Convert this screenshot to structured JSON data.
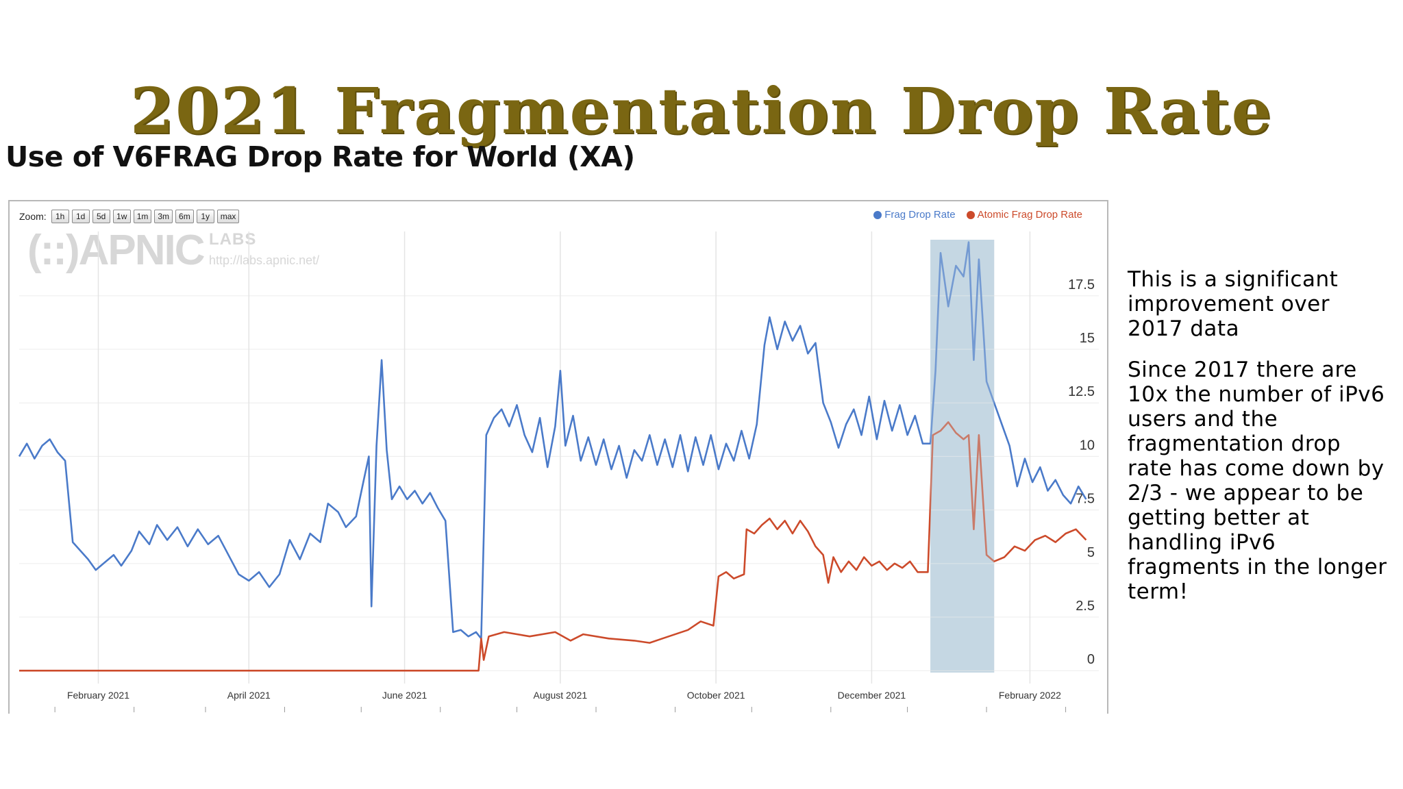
{
  "slide": {
    "title": "2021 Fragmentation Drop Rate",
    "chart_heading": "Use of V6FRAG Drop Rate for World (XA)"
  },
  "toolbar": {
    "zoom_label": "Zoom:",
    "zoom_buttons": [
      "1h",
      "1d",
      "5d",
      "1w",
      "1m",
      "3m",
      "6m",
      "1y",
      "max"
    ]
  },
  "watermark": {
    "logo": "(::)APNIC",
    "labs": "LABS",
    "url": "http://labs.apnic.net/"
  },
  "colors": {
    "frag": "#4a7ac9",
    "atomic": "#cc4a2a",
    "highlight": "#c3d6e2",
    "title": "#7a6612"
  },
  "notes": {
    "paragraph1": "This is a significant improvement over 2017 data",
    "paragraph2": "Since 2017 there are 10x the number of iPv6 users and the fragmentation drop rate has come down by 2/3 - we appear to be getting better at handling iPv6 fragments in the longer term!"
  },
  "chart_data": {
    "type": "line",
    "title": "",
    "xlabel": "",
    "ylabel": "",
    "x_ticks": [
      "February 2021",
      "April 2021",
      "June 2021",
      "August 2021",
      "October 2021",
      "December 2021",
      "February 2022"
    ],
    "x_range": [
      "2021-01-01",
      "2022-02-28"
    ],
    "y_ticks": [
      0,
      2.5,
      5,
      7.5,
      10,
      12.5,
      15,
      17.5
    ],
    "ylim": [
      -0.6,
      20.5
    ],
    "grid": true,
    "legend": "top-right",
    "highlight_range": [
      "2021-12-24",
      "2022-01-18"
    ],
    "series": [
      {
        "name": "Frag Drop Rate",
        "color": "#4a7ac9",
        "points": [
          [
            "2021-01-01",
            10.0
          ],
          [
            "2021-01-04",
            10.6
          ],
          [
            "2021-01-07",
            9.9
          ],
          [
            "2021-01-10",
            10.5
          ],
          [
            "2021-01-13",
            10.8
          ],
          [
            "2021-01-16",
            10.2
          ],
          [
            "2021-01-19",
            9.8
          ],
          [
            "2021-01-22",
            6.0
          ],
          [
            "2021-01-25",
            5.6
          ],
          [
            "2021-01-28",
            5.2
          ],
          [
            "2021-01-31",
            4.7
          ],
          [
            "2021-02-03",
            5.0
          ],
          [
            "2021-02-07",
            5.4
          ],
          [
            "2021-02-10",
            4.9
          ],
          [
            "2021-02-14",
            5.6
          ],
          [
            "2021-02-17",
            6.5
          ],
          [
            "2021-02-21",
            5.9
          ],
          [
            "2021-02-24",
            6.8
          ],
          [
            "2021-02-28",
            6.1
          ],
          [
            "2021-03-04",
            6.7
          ],
          [
            "2021-03-08",
            5.8
          ],
          [
            "2021-03-12",
            6.6
          ],
          [
            "2021-03-16",
            5.9
          ],
          [
            "2021-03-20",
            6.3
          ],
          [
            "2021-03-24",
            5.4
          ],
          [
            "2021-03-28",
            4.5
          ],
          [
            "2021-04-01",
            4.2
          ],
          [
            "2021-04-05",
            4.6
          ],
          [
            "2021-04-09",
            3.9
          ],
          [
            "2021-04-13",
            4.5
          ],
          [
            "2021-04-17",
            6.1
          ],
          [
            "2021-04-21",
            5.2
          ],
          [
            "2021-04-25",
            6.4
          ],
          [
            "2021-04-29",
            6.0
          ],
          [
            "2021-05-02",
            7.8
          ],
          [
            "2021-05-06",
            7.4
          ],
          [
            "2021-05-09",
            6.7
          ],
          [
            "2021-05-13",
            7.2
          ],
          [
            "2021-05-16",
            8.9
          ],
          [
            "2021-05-18",
            10.0
          ],
          [
            "2021-05-19",
            3.0
          ],
          [
            "2021-05-21",
            10.5
          ],
          [
            "2021-05-23",
            14.5
          ],
          [
            "2021-05-25",
            10.3
          ],
          [
            "2021-05-27",
            8.0
          ],
          [
            "2021-05-30",
            8.6
          ],
          [
            "2021-06-02",
            8.0
          ],
          [
            "2021-06-05",
            8.4
          ],
          [
            "2021-06-08",
            7.8
          ],
          [
            "2021-06-11",
            8.3
          ],
          [
            "2021-06-14",
            7.6
          ],
          [
            "2021-06-17",
            7.0
          ],
          [
            "2021-06-20",
            1.8
          ],
          [
            "2021-06-23",
            1.9
          ],
          [
            "2021-06-26",
            1.6
          ],
          [
            "2021-06-29",
            1.8
          ],
          [
            "2021-07-01",
            1.5
          ],
          [
            "2021-07-03",
            11.0
          ],
          [
            "2021-07-06",
            11.8
          ],
          [
            "2021-07-09",
            12.2
          ],
          [
            "2021-07-12",
            11.4
          ],
          [
            "2021-07-15",
            12.4
          ],
          [
            "2021-07-18",
            11.0
          ],
          [
            "2021-07-21",
            10.2
          ],
          [
            "2021-07-24",
            11.8
          ],
          [
            "2021-07-27",
            9.5
          ],
          [
            "2021-07-30",
            11.4
          ],
          [
            "2021-08-01",
            14.0
          ],
          [
            "2021-08-03",
            10.5
          ],
          [
            "2021-08-06",
            11.9
          ],
          [
            "2021-08-09",
            9.8
          ],
          [
            "2021-08-12",
            10.9
          ],
          [
            "2021-08-15",
            9.6
          ],
          [
            "2021-08-18",
            10.8
          ],
          [
            "2021-08-21",
            9.4
          ],
          [
            "2021-08-24",
            10.5
          ],
          [
            "2021-08-27",
            9.0
          ],
          [
            "2021-08-30",
            10.3
          ],
          [
            "2021-09-02",
            9.8
          ],
          [
            "2021-09-05",
            11.0
          ],
          [
            "2021-09-08",
            9.6
          ],
          [
            "2021-09-11",
            10.8
          ],
          [
            "2021-09-14",
            9.5
          ],
          [
            "2021-09-17",
            11.0
          ],
          [
            "2021-09-20",
            9.3
          ],
          [
            "2021-09-23",
            10.9
          ],
          [
            "2021-09-26",
            9.6
          ],
          [
            "2021-09-29",
            11.0
          ],
          [
            "2021-10-02",
            9.4
          ],
          [
            "2021-10-05",
            10.6
          ],
          [
            "2021-10-08",
            9.8
          ],
          [
            "2021-10-11",
            11.2
          ],
          [
            "2021-10-14",
            9.9
          ],
          [
            "2021-10-17",
            11.5
          ],
          [
            "2021-10-20",
            15.2
          ],
          [
            "2021-10-22",
            16.5
          ],
          [
            "2021-10-25",
            15.0
          ],
          [
            "2021-10-28",
            16.3
          ],
          [
            "2021-10-31",
            15.4
          ],
          [
            "2021-11-03",
            16.1
          ],
          [
            "2021-11-06",
            14.8
          ],
          [
            "2021-11-09",
            15.3
          ],
          [
            "2021-11-12",
            12.5
          ],
          [
            "2021-11-15",
            11.6
          ],
          [
            "2021-11-18",
            10.4
          ],
          [
            "2021-11-21",
            11.5
          ],
          [
            "2021-11-24",
            12.2
          ],
          [
            "2021-11-27",
            11.0
          ],
          [
            "2021-11-30",
            12.8
          ],
          [
            "2021-12-03",
            10.8
          ],
          [
            "2021-12-06",
            12.6
          ],
          [
            "2021-12-09",
            11.2
          ],
          [
            "2021-12-12",
            12.4
          ],
          [
            "2021-12-15",
            11.0
          ],
          [
            "2021-12-18",
            11.9
          ],
          [
            "2021-12-21",
            10.6
          ],
          [
            "2021-12-24",
            10.6
          ],
          [
            "2021-12-26",
            14.0
          ],
          [
            "2021-12-28",
            19.5
          ],
          [
            "2021-12-31",
            17.0
          ],
          [
            "2022-01-03",
            18.9
          ],
          [
            "2022-01-06",
            18.4
          ],
          [
            "2022-01-08",
            20.0
          ],
          [
            "2022-01-10",
            14.5
          ],
          [
            "2022-01-12",
            19.2
          ],
          [
            "2022-01-15",
            13.5
          ],
          [
            "2022-01-18",
            12.5
          ],
          [
            "2022-01-21",
            11.5
          ],
          [
            "2022-01-24",
            10.5
          ],
          [
            "2022-01-27",
            8.6
          ],
          [
            "2022-01-30",
            9.9
          ],
          [
            "2022-02-02",
            8.8
          ],
          [
            "2022-02-05",
            9.5
          ],
          [
            "2022-02-08",
            8.4
          ],
          [
            "2022-02-11",
            8.9
          ],
          [
            "2022-02-14",
            8.2
          ],
          [
            "2022-02-17",
            7.8
          ],
          [
            "2022-02-20",
            8.6
          ],
          [
            "2022-02-23",
            8.0
          ]
        ]
      },
      {
        "name": "Atomic Frag Drop Rate",
        "color": "#cc4a2a",
        "points": [
          [
            "2021-01-01",
            0.0
          ],
          [
            "2021-06-30",
            0.0
          ],
          [
            "2021-07-01",
            1.5
          ],
          [
            "2021-07-02",
            0.5
          ],
          [
            "2021-07-04",
            1.6
          ],
          [
            "2021-07-10",
            1.8
          ],
          [
            "2021-07-20",
            1.6
          ],
          [
            "2021-07-30",
            1.8
          ],
          [
            "2021-08-05",
            1.4
          ],
          [
            "2021-08-10",
            1.7
          ],
          [
            "2021-08-20",
            1.5
          ],
          [
            "2021-08-30",
            1.4
          ],
          [
            "2021-09-05",
            1.3
          ],
          [
            "2021-09-10",
            1.5
          ],
          [
            "2021-09-20",
            1.9
          ],
          [
            "2021-09-25",
            2.3
          ],
          [
            "2021-09-30",
            2.1
          ],
          [
            "2021-10-02",
            4.4
          ],
          [
            "2021-10-05",
            4.6
          ],
          [
            "2021-10-08",
            4.3
          ],
          [
            "2021-10-12",
            4.5
          ],
          [
            "2021-10-13",
            6.6
          ],
          [
            "2021-10-16",
            6.4
          ],
          [
            "2021-10-19",
            6.8
          ],
          [
            "2021-10-22",
            7.1
          ],
          [
            "2021-10-25",
            6.6
          ],
          [
            "2021-10-28",
            7.0
          ],
          [
            "2021-10-31",
            6.4
          ],
          [
            "2021-11-03",
            7.0
          ],
          [
            "2021-11-06",
            6.5
          ],
          [
            "2021-11-09",
            5.8
          ],
          [
            "2021-11-12",
            5.4
          ],
          [
            "2021-11-14",
            4.1
          ],
          [
            "2021-11-16",
            5.3
          ],
          [
            "2021-11-19",
            4.6
          ],
          [
            "2021-11-22",
            5.1
          ],
          [
            "2021-11-25",
            4.7
          ],
          [
            "2021-11-28",
            5.3
          ],
          [
            "2021-12-01",
            4.9
          ],
          [
            "2021-12-04",
            5.1
          ],
          [
            "2021-12-07",
            4.7
          ],
          [
            "2021-12-10",
            5.0
          ],
          [
            "2021-12-13",
            4.8
          ],
          [
            "2021-12-16",
            5.1
          ],
          [
            "2021-12-19",
            4.6
          ],
          [
            "2021-12-23",
            4.6
          ],
          [
            "2021-12-25",
            11.0
          ],
          [
            "2021-12-28",
            11.2
          ],
          [
            "2021-12-31",
            11.6
          ],
          [
            "2022-01-03",
            11.1
          ],
          [
            "2022-01-06",
            10.8
          ],
          [
            "2022-01-08",
            11.0
          ],
          [
            "2022-01-10",
            6.6
          ],
          [
            "2022-01-12",
            11.0
          ],
          [
            "2022-01-15",
            5.4
          ],
          [
            "2022-01-18",
            5.1
          ],
          [
            "2022-01-22",
            5.3
          ],
          [
            "2022-01-26",
            5.8
          ],
          [
            "2022-01-30",
            5.6
          ],
          [
            "2022-02-03",
            6.1
          ],
          [
            "2022-02-07",
            6.3
          ],
          [
            "2022-02-11",
            6.0
          ],
          [
            "2022-02-15",
            6.4
          ],
          [
            "2022-02-19",
            6.6
          ],
          [
            "2022-02-23",
            6.1
          ]
        ]
      }
    ]
  }
}
